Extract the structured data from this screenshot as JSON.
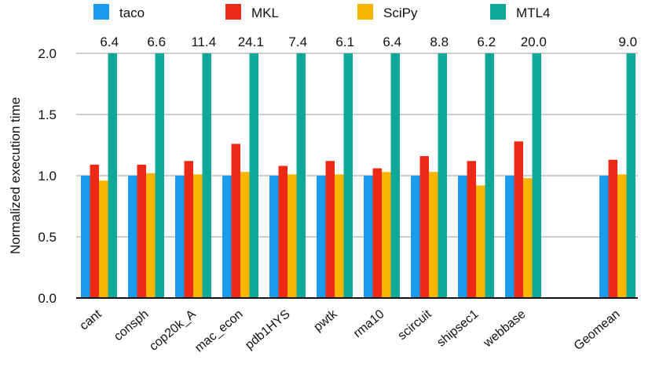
{
  "chart_data": {
    "type": "bar",
    "title": "",
    "xlabel": "",
    "ylabel": "Normalized execution time",
    "ylim": [
      0,
      2.0
    ],
    "yticks": [
      "0.0",
      "0.5",
      "1.0",
      "1.5",
      "2.0"
    ],
    "grid": true,
    "legend_position": "top",
    "categories": [
      "cant",
      "consph",
      "cop20k_A",
      "mac_econ",
      "pdb1HYS",
      "pwtk",
      "rma10",
      "scircuit",
      "shipsec1",
      "webbase",
      "Geomean"
    ],
    "series": [
      {
        "name": "taco",
        "color": "#1a9bf0",
        "values": [
          1.0,
          1.0,
          1.0,
          1.0,
          1.0,
          1.0,
          1.0,
          1.0,
          1.0,
          1.0,
          1.0
        ]
      },
      {
        "name": "MKL",
        "color": "#ee2a16",
        "values": [
          1.09,
          1.09,
          1.12,
          1.26,
          1.08,
          1.12,
          1.06,
          1.16,
          1.12,
          1.28,
          1.13
        ]
      },
      {
        "name": "SciPy",
        "color": "#f7b500",
        "values": [
          0.96,
          1.02,
          1.01,
          1.03,
          1.01,
          1.01,
          1.03,
          1.03,
          0.92,
          0.98,
          1.01
        ]
      },
      {
        "name": "MTL4",
        "color": "#10a898",
        "values": [
          6.4,
          6.6,
          11.4,
          24.1,
          7.4,
          6.1,
          6.4,
          8.8,
          6.2,
          20.0,
          9.0
        ]
      }
    ],
    "clipped_labels": [
      "6.4",
      "6.6",
      "11.4",
      "24.1",
      "7.4",
      "6.1",
      "6.4",
      "8.8",
      "6.2",
      "20.0",
      "9.0"
    ]
  }
}
